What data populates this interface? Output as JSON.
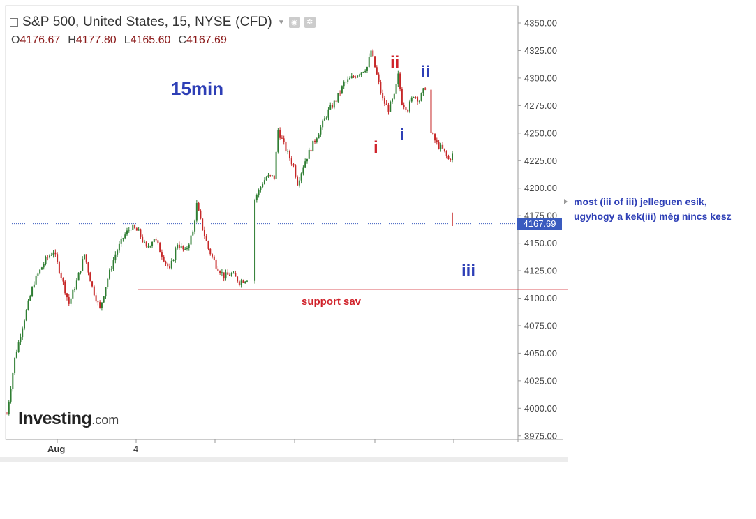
{
  "header": {
    "symbol_title": "S&P 500, United States, 15, NYSE (CFD)",
    "dropdown_icon": "chevron-down-icon",
    "eye_icon": "eye-icon",
    "settings_icon": "gear-icon"
  },
  "ohlc": {
    "open_label": "O",
    "open": "4176.67",
    "high_label": "H",
    "high": "4177.80",
    "low_label": "L",
    "low": "4165.60",
    "close_label": "C",
    "close": "4167.69"
  },
  "annotations": {
    "timeframe": "15min",
    "wave_labels": {
      "red_ii": "ii",
      "blue_ii": "ii",
      "red_i": "i",
      "blue_i": "i",
      "blue_iii": "iii"
    },
    "support_label": "support sav",
    "note_line1": "most (iii of iii) jelleguen esik,",
    "note_line2": "ugyhogy a kek(iii) még nincs kesz"
  },
  "logo": {
    "main": "Investing",
    "tld": ".com"
  },
  "colors": {
    "up_candle": "#2e7d32",
    "down_candle": "#c62828",
    "annotation_red": "#d0222a",
    "annotation_blue": "#2e3fb6",
    "price_tag": "#3a5bbf",
    "support_line": "#d0222a"
  },
  "chart_data": {
    "type": "candlestick",
    "ylim": [
      3975,
      4350
    ],
    "y_ticks": [
      "4350.00",
      "4325.00",
      "4300.00",
      "4275.00",
      "4250.00",
      "4225.00",
      "4200.00",
      "4175.00",
      "4150.00",
      "4125.00",
      "4100.00",
      "4075.00",
      "4050.00",
      "4025.00",
      "4000.00",
      "3975.00"
    ],
    "x_tick_labels": [
      "Aug",
      "4"
    ],
    "last_price": "4167.69",
    "support_levels": [
      4108,
      4081
    ],
    "price_path": [
      [
        0,
        3995
      ],
      [
        4,
        4045
      ],
      [
        8,
        4075
      ],
      [
        14,
        4115
      ],
      [
        20,
        4135
      ],
      [
        24,
        4143
      ],
      [
        28,
        4120
      ],
      [
        32,
        4095
      ],
      [
        36,
        4115
      ],
      [
        40,
        4140
      ],
      [
        44,
        4110
      ],
      [
        48,
        4090
      ],
      [
        52,
        4118
      ],
      [
        56,
        4140
      ],
      [
        60,
        4155
      ],
      [
        64,
        4165
      ],
      [
        68,
        4160
      ],
      [
        72,
        4145
      ],
      [
        76,
        4155
      ],
      [
        80,
        4140
      ],
      [
        84,
        4125
      ],
      [
        88,
        4150
      ],
      [
        92,
        4142
      ],
      [
        96,
        4160
      ],
      [
        98,
        4185
      ],
      [
        100,
        4170
      ],
      [
        104,
        4145
      ],
      [
        108,
        4130
      ],
      [
        112,
        4120
      ],
      [
        116,
        4122
      ],
      [
        120,
        4115
      ],
      [
        124,
        4118
      ],
      [
        128,
        4190
      ],
      [
        132,
        4205
      ],
      [
        134,
        4210
      ],
      [
        138,
        4210
      ],
      [
        140,
        4253
      ],
      [
        144,
        4235
      ],
      [
        148,
        4220
      ],
      [
        150,
        4205
      ],
      [
        154,
        4225
      ],
      [
        158,
        4240
      ],
      [
        162,
        4255
      ],
      [
        166,
        4270
      ],
      [
        170,
        4280
      ],
      [
        174,
        4295
      ],
      [
        178,
        4300
      ],
      [
        182,
        4305
      ],
      [
        186,
        4310
      ],
      [
        188,
        4325
      ],
      [
        192,
        4295
      ],
      [
        194,
        4280
      ],
      [
        197,
        4272
      ],
      [
        200,
        4283
      ],
      [
        202,
        4302
      ],
      [
        204,
        4278
      ],
      [
        207,
        4272
      ],
      [
        210,
        4285
      ],
      [
        213,
        4280
      ],
      [
        216,
        4292
      ],
      [
        219,
        4250
      ],
      [
        222,
        4240
      ],
      [
        225,
        4235
      ],
      [
        228,
        4226
      ],
      [
        230,
        4230
      ]
    ]
  }
}
